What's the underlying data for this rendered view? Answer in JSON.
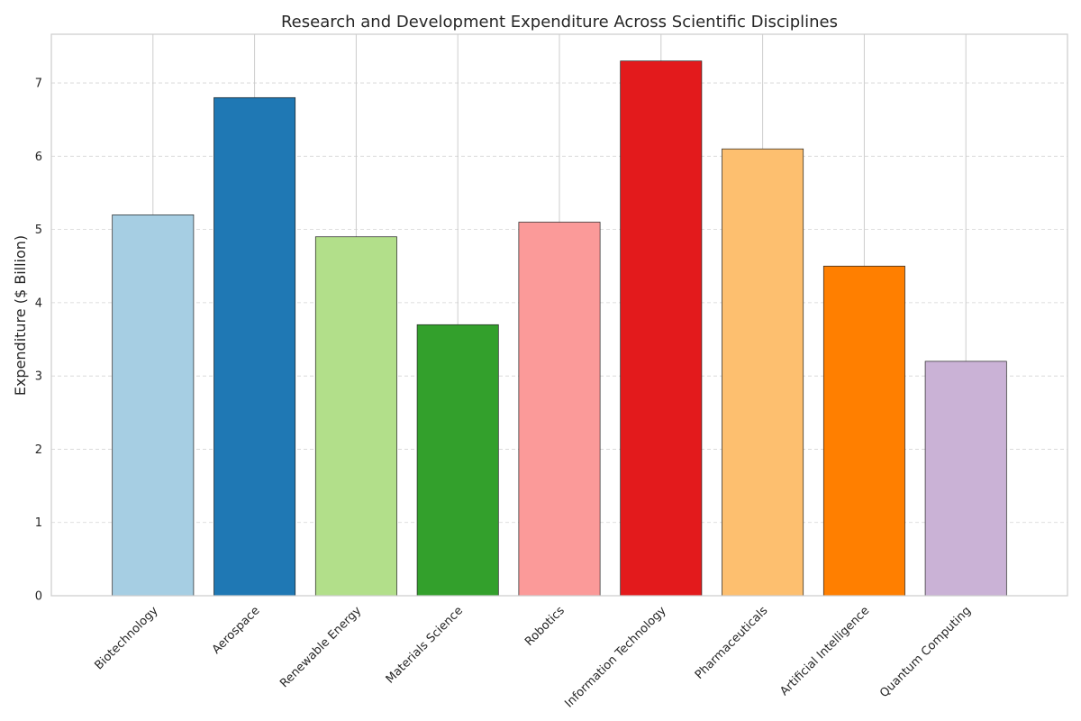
{
  "chart_data": {
    "type": "bar",
    "title": "Research and Development Expenditure Across Scientific Disciplines",
    "xlabel": "",
    "ylabel": "Expenditure ($ Billion)",
    "categories": [
      "Biotechnology",
      "Aerospace",
      "Renewable Energy",
      "Materials Science",
      "Robotics",
      "Information Technology",
      "Pharmaceuticals",
      "Artificial Intelligence",
      "Quantum Computing"
    ],
    "values": [
      5.2,
      6.8,
      4.9,
      3.7,
      5.1,
      7.3,
      6.1,
      4.5,
      3.2
    ],
    "colors": [
      "#a6cee3",
      "#1f78b4",
      "#b2df8a",
      "#33a02c",
      "#fb9a99",
      "#e31a1c",
      "#fdbf6f",
      "#ff7f00",
      "#cab2d6"
    ],
    "ylim": [
      0,
      7.665
    ],
    "yticks": [
      0,
      1,
      2,
      3,
      4,
      5,
      6,
      7
    ],
    "grid": true,
    "legend": "none"
  }
}
